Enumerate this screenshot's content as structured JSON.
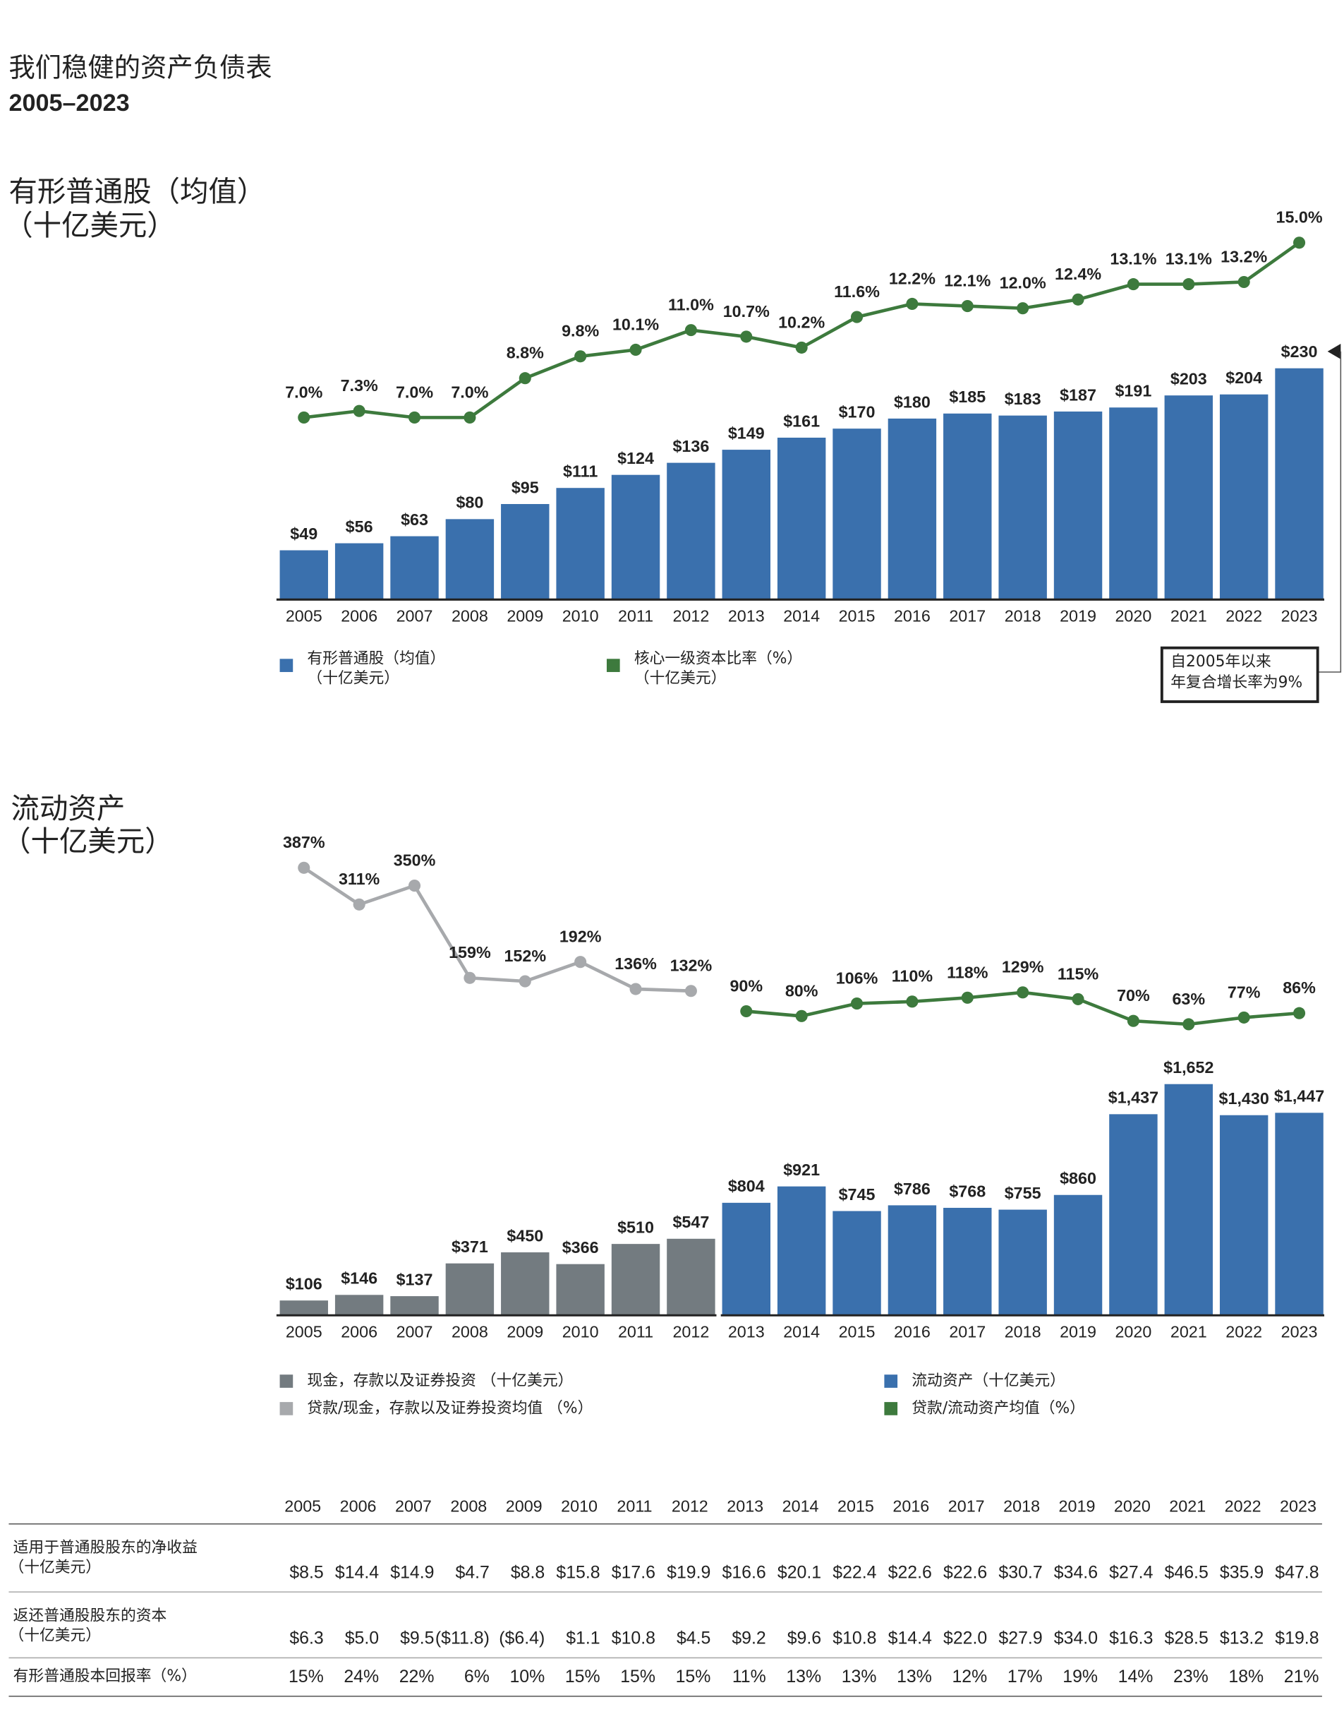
{
  "header": {
    "title": "我们稳健的资产负债表",
    "subtitle": "2005–2023"
  },
  "chart_data": [
    {
      "type": "combo",
      "title": "有形普通股（均值）",
      "subtitle": "（十亿美元）",
      "categories": [
        "2005",
        "2006",
        "2007",
        "2008",
        "2009",
        "2010",
        "2011",
        "2012",
        "2013",
        "2014",
        "2015",
        "2016",
        "2017",
        "2018",
        "2019",
        "2020",
        "2021",
        "2022",
        "2023"
      ],
      "ylim": [
        0,
        250
      ],
      "y2lim": [
        5,
        16
      ],
      "series": [
        {
          "name": "有形普通股（均值）",
          "unit": "（十亿美元）",
          "type": "bar",
          "color": "#3a70ad",
          "values": [
            49,
            56,
            63,
            80,
            95,
            111,
            124,
            136,
            149,
            161,
            170,
            180,
            185,
            183,
            187,
            191,
            203,
            204,
            230
          ],
          "value_labels": [
            "$49",
            "$56",
            "$63",
            "$80",
            "$95",
            "$111",
            "$124",
            "$136",
            "$149",
            "$161",
            "$170",
            "$180",
            "$185",
            "$183",
            "$187",
            "$191",
            "$203",
            "$204",
            "$230"
          ]
        },
        {
          "name": "核心一级资本比率（%）",
          "unit": "（十亿美元）",
          "type": "line",
          "axis": "y2",
          "color": "#3d7a3d",
          "values": [
            7.0,
            7.3,
            7.0,
            7.0,
            8.8,
            9.8,
            10.1,
            11.0,
            10.7,
            10.2,
            11.6,
            12.2,
            12.1,
            12.0,
            12.4,
            13.1,
            13.1,
            13.2,
            15.0
          ],
          "value_labels": [
            "7.0%",
            "7.3%",
            "7.0%",
            "7.0%",
            "8.8%",
            "9.8%",
            "10.1%",
            "11.0%",
            "10.7%",
            "10.2%",
            "11.6%",
            "12.2%",
            "12.1%",
            "12.0%",
            "12.4%",
            "13.1%",
            "13.1%",
            "13.2%",
            "15.0%"
          ]
        }
      ],
      "annotation": [
        "自2005年以来",
        "年复合增长率为9%"
      ]
    },
    {
      "type": "combo",
      "title": "流动资产",
      "subtitle": "（十亿美元）",
      "categories": [
        "2005",
        "2006",
        "2007",
        "2008",
        "2009",
        "2010",
        "2011",
        "2012",
        "2013",
        "2014",
        "2015",
        "2016",
        "2017",
        "2018",
        "2019",
        "2020",
        "2021",
        "2022",
        "2023"
      ],
      "ylim": [
        0,
        1800
      ],
      "y2lim": [
        0,
        420
      ],
      "series": [
        {
          "name": "现金，存款以及证券投资 （十亿美元）",
          "type": "bar",
          "color": "#737b80",
          "values": [
            106,
            146,
            137,
            371,
            450,
            366,
            510,
            547,
            null,
            null,
            null,
            null,
            null,
            null,
            null,
            null,
            null,
            null,
            null
          ],
          "value_labels": [
            "$106",
            "$146",
            "$137",
            "$371",
            "$450",
            "$366",
            "$510",
            "$547",
            null,
            null,
            null,
            null,
            null,
            null,
            null,
            null,
            null,
            null,
            null
          ]
        },
        {
          "name": "贷款/现金，存款以及证券投资均值 （%）",
          "type": "line",
          "axis": "y2",
          "color": "#a7a9ac",
          "values": [
            387,
            311,
            350,
            159,
            152,
            192,
            136,
            132,
            null,
            null,
            null,
            null,
            null,
            null,
            null,
            null,
            null,
            null,
            null
          ],
          "value_labels": [
            "387%",
            "311%",
            "350%",
            "159%",
            "152%",
            "192%",
            "136%",
            "132%",
            null,
            null,
            null,
            null,
            null,
            null,
            null,
            null,
            null,
            null,
            null
          ]
        },
        {
          "name": "流动资产（十亿美元）",
          "type": "bar",
          "color": "#3a70ad",
          "values": [
            null,
            null,
            null,
            null,
            null,
            null,
            null,
            null,
            804,
            921,
            745,
            786,
            768,
            755,
            860,
            1437,
            1652,
            1430,
            1447
          ],
          "value_labels": [
            null,
            null,
            null,
            null,
            null,
            null,
            null,
            null,
            "$804",
            "$921",
            "$745",
            "$786",
            "$768",
            "$755",
            "$860",
            "$1,437",
            "$1,652",
            "$1,430",
            "$1,447"
          ]
        },
        {
          "name": "贷款/流动资产均值（%）",
          "type": "line",
          "axis": "y2",
          "color": "#3d7a3d",
          "values": [
            null,
            null,
            null,
            null,
            null,
            null,
            null,
            null,
            90,
            80,
            106,
            110,
            118,
            129,
            115,
            70,
            63,
            77,
            86
          ],
          "value_labels": [
            null,
            null,
            null,
            null,
            null,
            null,
            null,
            null,
            "90%",
            "80%",
            "106%",
            "110%",
            "118%",
            "129%",
            "115%",
            "70%",
            "63%",
            "77%",
            "86%"
          ]
        }
      ]
    }
  ],
  "table": {
    "columns": [
      "2005",
      "2006",
      "2007",
      "2008",
      "2009",
      "2010",
      "2011",
      "2012",
      "2013",
      "2014",
      "2015",
      "2016",
      "2017",
      "2018",
      "2019",
      "2020",
      "2021",
      "2022",
      "2023"
    ],
    "rows": [
      {
        "label": "适用于普通股股东的净收益",
        "unit": "（十亿美元）",
        "values": [
          "$8.5",
          "$14.4",
          "$14.9",
          "$4.7",
          "$8.8",
          "$15.8",
          "$17.6",
          "$19.9",
          "$16.6",
          "$20.1",
          "$22.4",
          "$22.6",
          "$22.6",
          "$30.7",
          "$34.6",
          "$27.4",
          "$46.5",
          "$35.9",
          "$47.8"
        ]
      },
      {
        "label": "返还普通股股东的资本",
        "unit": "（十亿美元）",
        "values": [
          "$6.3",
          "$5.0",
          "$9.5",
          "($11.8)",
          "($6.4)",
          "$1.1",
          "$10.8",
          "$4.5",
          "$9.2",
          "$9.6",
          "$10.8",
          "$14.4",
          "$22.0",
          "$27.9",
          "$34.0",
          "$16.3",
          "$28.5",
          "$13.2",
          "$19.8"
        ]
      },
      {
        "label": "有形普通股本回报率（%）",
        "values": [
          "15%",
          "24%",
          "22%",
          "6%",
          "10%",
          "15%",
          "15%",
          "15%",
          "11%",
          "13%",
          "13%",
          "13%",
          "12%",
          "17%",
          "19%",
          "14%",
          "23%",
          "18%",
          "21%"
        ]
      }
    ]
  }
}
